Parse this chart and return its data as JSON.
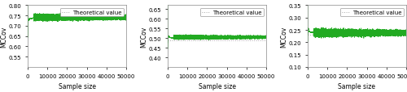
{
  "n_samples": 50000,
  "plots": [
    {
      "theoretical": 0.741,
      "ylim": [
        0.5,
        0.8
      ],
      "yticks": [
        0.55,
        0.6,
        0.65,
        0.7,
        0.75,
        0.8
      ],
      "ylabel": "MCCov",
      "xlabel": "Sample size",
      "legend_label": "Theoretical value",
      "trace_color": "#22aa22",
      "theory_color": "#aaaaaa",
      "spike_low": 0.48,
      "spike_high": 0.84,
      "converge_val": 0.741,
      "noise_scale": 0.18,
      "noise_decay": 0.00015,
      "post_noise": 0.006
    },
    {
      "theoretical": 0.486,
      "ylim": [
        0.35,
        0.67
      ],
      "yticks": [
        0.4,
        0.45,
        0.5,
        0.55,
        0.6,
        0.65
      ],
      "ylabel": "MCCov",
      "xlabel": "Sample size",
      "legend_label": "Theoretical value",
      "trace_color": "#22aa22",
      "theory_color": "#aaaaaa",
      "spike_low": 0.33,
      "spike_high": 0.67,
      "converge_val": 0.504,
      "noise_scale": 0.14,
      "noise_decay": 0.00015,
      "post_noise": 0.004
    },
    {
      "theoretical": 0.232,
      "ylim": [
        0.1,
        0.35
      ],
      "yticks": [
        0.1,
        0.15,
        0.2,
        0.25,
        0.3,
        0.35
      ],
      "ylabel": "MCCov",
      "xlabel": "Sample size",
      "legend_label": "Theoretical value",
      "trace_color": "#22aa22",
      "theory_color": "#aaaaaa",
      "spike_low": 0.07,
      "spike_high": 0.36,
      "converge_val": 0.238,
      "noise_scale": 0.1,
      "noise_decay": 0.00015,
      "post_noise": 0.006
    }
  ],
  "background_color": "#ffffff",
  "tick_fontsize": 5,
  "label_fontsize": 5.5,
  "legend_fontsize": 5
}
